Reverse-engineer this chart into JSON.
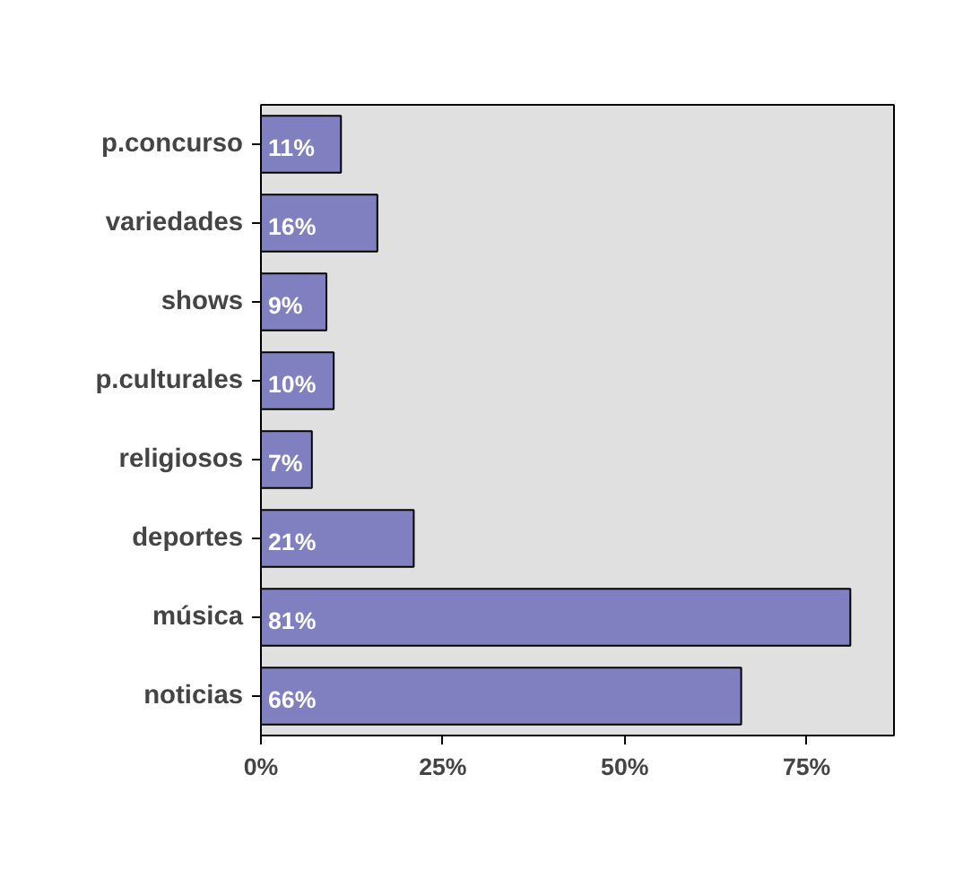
{
  "chart_data": {
    "type": "bar",
    "orientation": "horizontal",
    "categories": [
      "p.concurso",
      "variedades",
      "shows",
      "p.culturales",
      "religiosos",
      "deportes",
      "música",
      "noticias"
    ],
    "values": [
      11,
      16,
      9,
      10,
      7,
      21,
      81,
      66
    ],
    "value_labels": [
      "11%",
      "16%",
      "9%",
      "10%",
      "7%",
      "21%",
      "81%",
      "66%"
    ],
    "color": "#8080c0",
    "xlim": [
      0,
      87
    ],
    "xticks": [
      {
        "value": 0,
        "label": "0%"
      },
      {
        "value": 25,
        "label": "25%"
      },
      {
        "value": 50,
        "label": "50%"
      },
      {
        "value": 75,
        "label": "75%"
      }
    ],
    "grid": false
  }
}
